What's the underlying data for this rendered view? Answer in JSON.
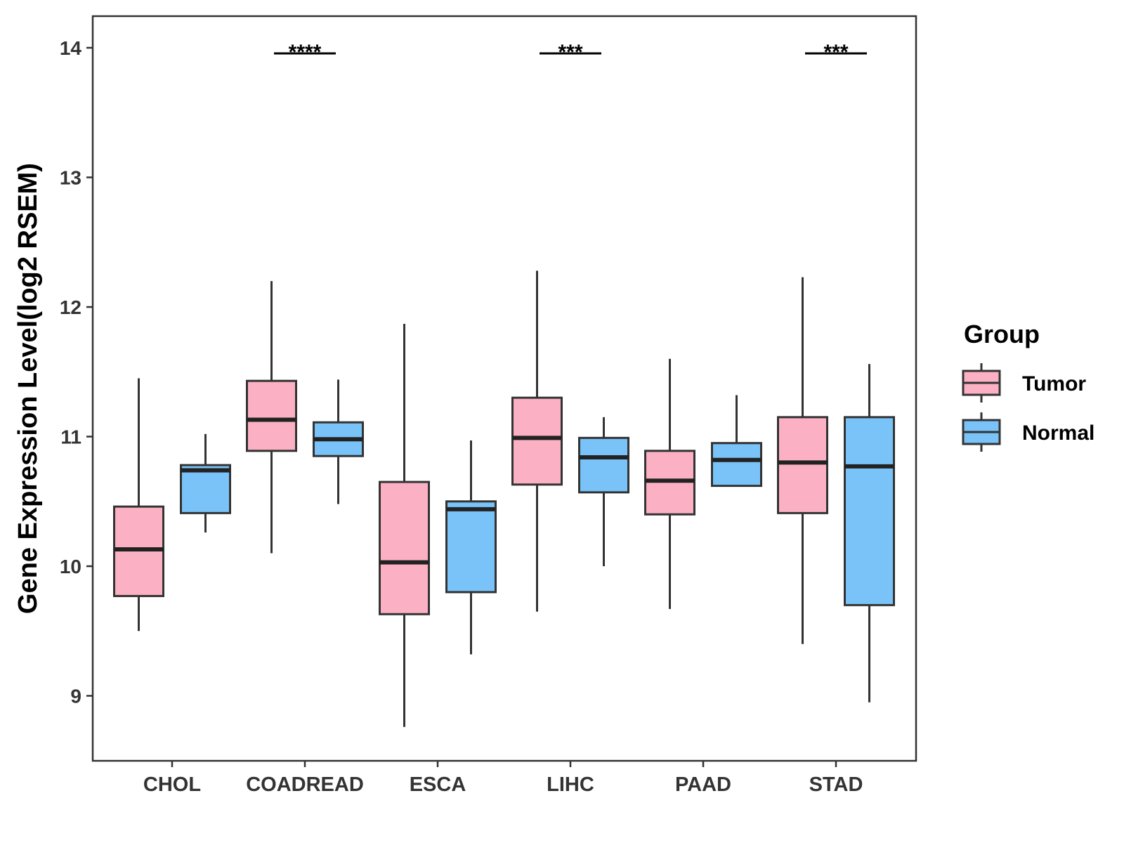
{
  "chart_data": {
    "type": "boxplot",
    "title": "",
    "xlabel": "",
    "ylabel": "Gene Expression Level(log2 RSEM)",
    "ylim": [
      8.5,
      14.25
    ],
    "yticks": [
      9,
      10,
      11,
      12,
      13,
      14
    ],
    "grid": false,
    "legend": {
      "title": "Group",
      "placement": "right",
      "entries": [
        {
          "name": "Tumor",
          "color": "#fbb1c3"
        },
        {
          "name": "Normal",
          "color": "#79c3f8"
        }
      ]
    },
    "categories": [
      "CHOL",
      "COADREAD",
      "ESCA",
      "LIHC",
      "PAAD",
      "STAD"
    ],
    "series": [
      {
        "name": "Tumor",
        "color": "#fbb1c3",
        "boxes": [
          {
            "whislo": 9.5,
            "q1": 9.77,
            "med": 10.13,
            "q3": 10.46,
            "whishi": 11.45
          },
          {
            "whislo": 10.1,
            "q1": 10.89,
            "med": 11.13,
            "q3": 11.43,
            "whishi": 12.2
          },
          {
            "whislo": 8.76,
            "q1": 9.63,
            "med": 10.03,
            "q3": 10.65,
            "whishi": 11.87
          },
          {
            "whislo": 9.65,
            "q1": 10.63,
            "med": 10.99,
            "q3": 11.3,
            "whishi": 12.28
          },
          {
            "whislo": 9.67,
            "q1": 10.4,
            "med": 10.66,
            "q3": 10.89,
            "whishi": 11.6
          },
          {
            "whislo": 9.4,
            "q1": 10.41,
            "med": 10.8,
            "q3": 11.15,
            "whishi": 12.23
          }
        ]
      },
      {
        "name": "Normal",
        "color": "#79c3f8",
        "boxes": [
          {
            "whislo": 10.26,
            "q1": 10.41,
            "med": 10.74,
            "q3": 10.78,
            "whishi": 11.02
          },
          {
            "whislo": 10.48,
            "q1": 10.85,
            "med": 10.98,
            "q3": 11.11,
            "whishi": 11.44
          },
          {
            "whislo": 9.32,
            "q1": 9.8,
            "med": 10.44,
            "q3": 10.5,
            "whishi": 10.97
          },
          {
            "whislo": 10.0,
            "q1": 10.57,
            "med": 10.84,
            "q3": 10.99,
            "whishi": 11.15
          },
          {
            "whislo": 10.62,
            "q1": 10.62,
            "med": 10.82,
            "q3": 10.95,
            "whishi": 11.32
          },
          {
            "whislo": 8.95,
            "q1": 9.7,
            "med": 10.77,
            "q3": 11.15,
            "whishi": 11.56
          }
        ]
      }
    ],
    "annotations": [
      {
        "category": "COADREAD",
        "text": "****",
        "y": 14
      },
      {
        "category": "LIHC",
        "text": "***",
        "y": 14
      },
      {
        "category": "STAD",
        "text": "***",
        "y": 14
      }
    ]
  }
}
